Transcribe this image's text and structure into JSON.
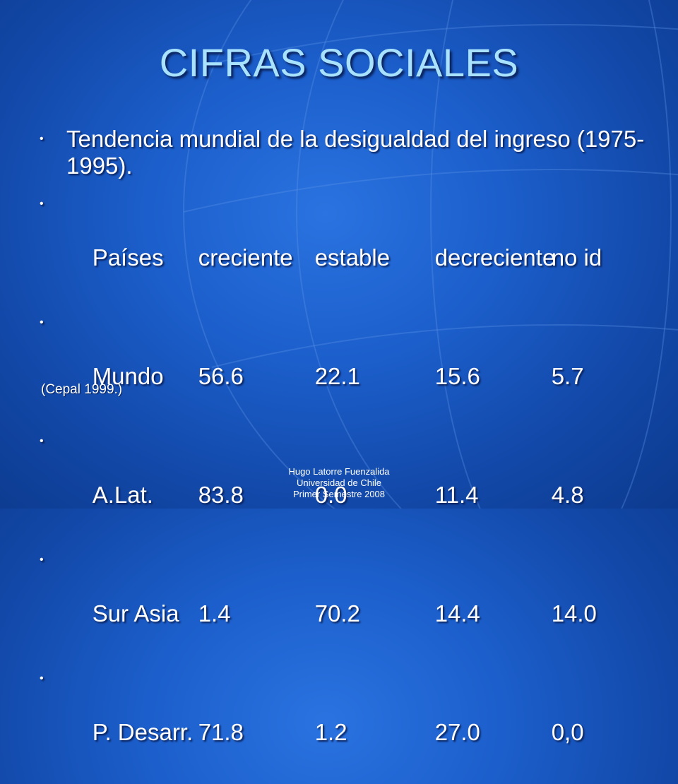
{
  "slide": {
    "title": "CIFRAS SOCIALES",
    "intro": "Tendencia mundial de la desigualdad del ingreso  (1975-1995).",
    "header_row": [
      "Países",
      "creciente",
      "estable",
      "decreciente",
      "no id"
    ],
    "rows": [
      [
        "Mundo",
        "56.6",
        "22.1",
        "15.6",
        "5.7"
      ],
      [
        "A.Lat.",
        "83.8",
        "0.0",
        "11.4",
        "4.8"
      ],
      [
        "Sur Asia",
        "1.4",
        "70.2",
        "14.4",
        "14.0"
      ],
      [
        "P. Desarr.",
        "71.8",
        "1.2",
        "27.0",
        "0,0"
      ]
    ],
    "source": "(Cepal 1999.)",
    "bullet_glyph": "•",
    "footer": [
      "Hugo Latorre Fuenzalida",
      "Universidad de Chile",
      "Primer Semestre 2008"
    ]
  },
  "colors": {
    "title": "#a9e2ff",
    "text": "#ffffff",
    "background": "#1c5fcc"
  }
}
